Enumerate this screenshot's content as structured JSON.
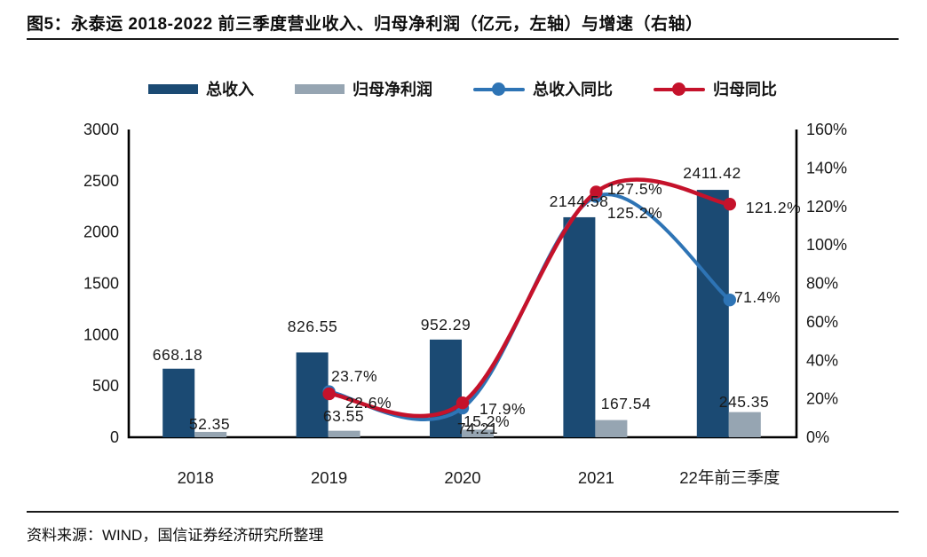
{
  "figure": {
    "title": "图5：永泰运 2018-2022 前三季度营业收入、归母净利润（亿元，左轴）与增速（右轴）",
    "source": "资料来源：WIND，国信证券经济研究所整理"
  },
  "colors": {
    "revenue_bar": "#1B4A73",
    "profit_bar": "#96A5B2",
    "revenue_yoy_line": "#2E74B5",
    "profit_yoy_line": "#C5122B",
    "axis": "#000000",
    "label_text": "#1A1A1A"
  },
  "chart_data": {
    "type": "combo-bar-line",
    "categories": [
      "2018",
      "2019",
      "2020",
      "2021",
      "22年前三季度"
    ],
    "left_axis": {
      "min": 0,
      "max": 3000,
      "tick_labels": [
        "0",
        "500",
        "1000",
        "1500",
        "2000",
        "2500",
        "3000"
      ]
    },
    "right_axis": {
      "min": 0,
      "max": 160,
      "tick_labels": [
        "0%",
        "20%",
        "40%",
        "60%",
        "80%",
        "100%",
        "120%",
        "140%",
        "160%"
      ]
    },
    "grid": false,
    "legend_position": "top",
    "series": [
      {
        "name": "总收入",
        "type": "bar",
        "axis": "left",
        "color_key": "revenue_bar",
        "values": [
          668.18,
          826.55,
          952.29,
          2144.58,
          2411.42
        ],
        "labels": [
          "668.18",
          "826.55",
          "952.29",
          "2144.58",
          "2411.42"
        ]
      },
      {
        "name": "归母净利润",
        "type": "bar",
        "axis": "left",
        "color_key": "profit_bar",
        "values": [
          52.35,
          63.55,
          74.21,
          167.54,
          245.35
        ],
        "labels": [
          "52.35",
          "63.55",
          "74.21",
          "167.54",
          "245.35"
        ]
      },
      {
        "name": "总收入同比",
        "type": "line",
        "axis": "right",
        "color_key": "revenue_yoy_line",
        "values": [
          null,
          23.7,
          15.2,
          125.2,
          71.4
        ],
        "labels": [
          null,
          "23.7%",
          "15.2%",
          "125.2%",
          "71.4%"
        ]
      },
      {
        "name": "归母同比",
        "type": "line",
        "axis": "right",
        "color_key": "profit_yoy_line",
        "values": [
          null,
          22.6,
          17.9,
          127.5,
          121.2
        ],
        "labels": [
          null,
          "22.6%",
          "17.9%",
          "127.5%",
          "121.2%"
        ]
      }
    ]
  }
}
